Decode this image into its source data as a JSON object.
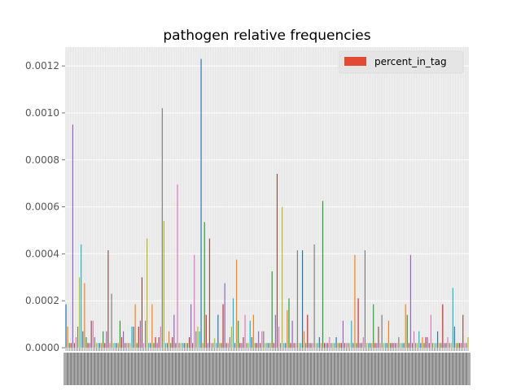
{
  "chart_data": {
    "type": "bar",
    "title": "pathogen relative frequencies",
    "xlabel": "",
    "ylabel": "",
    "ylim": [
      0,
      0.00128
    ],
    "yticks": [
      "0.0000",
      "0.0002",
      "0.0004",
      "0.0006",
      "0.0008",
      "0.0010",
      "0.0012"
    ],
    "ytick_values": [
      0,
      0.0002,
      0.0004,
      0.0006,
      0.0008,
      0.001,
      0.0012
    ],
    "grid": true,
    "legend_position": "top-right",
    "series": [
      {
        "name": "percent_in_tag",
        "color": "#E24A33",
        "values": [
          0.000185,
          9e-05,
          2e-05,
          2e-05,
          0.00095,
          2e-05,
          4.5e-05,
          9e-05,
          0.0003,
          0.00044,
          7e-05,
          0.000275,
          4.5e-05,
          2e-05,
          2e-05,
          0.000115,
          0.000115,
          4.5e-05,
          2e-05,
          2e-05,
          2e-05,
          2e-05,
          7e-05,
          2e-05,
          7e-05,
          0.000415,
          2e-05,
          0.00023,
          2e-05,
          2e-05,
          2e-05,
          2e-05,
          0.000115,
          4.5e-05,
          7e-05,
          2e-05,
          2e-05,
          2e-05,
          2e-05,
          9e-05,
          9e-05,
          0.000185,
          2e-05,
          9e-05,
          0.000115,
          0.0003,
          2e-05,
          0.000115,
          0.000465,
          2e-05,
          2e-05,
          0.000185,
          2e-05,
          4.5e-05,
          2e-05,
          4.5e-05,
          9e-05,
          0.00102,
          0.00054,
          2e-05,
          2e-05,
          7e-05,
          2e-05,
          4.5e-05,
          0.00014,
          2e-05,
          0.000695,
          2e-05,
          2e-05,
          2e-05,
          2e-05,
          2e-05,
          2e-05,
          4.5e-05,
          0.000185,
          2e-05,
          0.000395,
          7e-05,
          9e-05,
          7e-05,
          0.00123,
          2e-05,
          0.000535,
          0.00014,
          2e-05,
          0.000465,
          2e-05,
          2e-05,
          4e-05,
          2e-05,
          0.00014,
          2e-05,
          2e-05,
          0.000185,
          0.000275,
          2e-05,
          2e-05,
          4.5e-05,
          9e-05,
          0.00021,
          2e-05,
          0.000375,
          0.000115,
          2e-05,
          2e-05,
          4.5e-05,
          0.00014,
          2e-05,
          2e-05,
          0.000115,
          4.5e-05,
          0.00014,
          2e-05,
          2e-05,
          7e-05,
          2e-05,
          7e-05,
          7e-05,
          2e-05,
          2e-05,
          2e-05,
          2e-05,
          0.000325,
          2e-05,
          0.00014,
          0.00074,
          9e-05,
          2e-05,
          0.0006,
          2e-05,
          2e-05,
          0.00016,
          0.00021,
          2e-05,
          0.000115,
          2e-05,
          2e-05,
          0.000415,
          2e-05,
          2e-05,
          0.000415,
          7e-05,
          2e-05,
          0.00014,
          2e-05,
          2e-05,
          2e-05,
          0.00044,
          2e-05,
          2e-05,
          4.5e-05,
          2e-05,
          0.000625,
          2e-05,
          2e-05,
          2e-05,
          4.5e-05,
          2e-05,
          2e-05,
          2e-05,
          4.5e-05,
          2e-05,
          2e-05,
          2e-05,
          0.000115,
          2e-05,
          2e-05,
          2e-05,
          2e-05,
          0.000115,
          2e-05,
          0.000395,
          2e-05,
          0.00021,
          2e-05,
          2e-05,
          4.5e-05,
          0.000415,
          2e-05,
          2e-05,
          2e-05,
          2e-05,
          0.000185,
          2e-05,
          2e-05,
          9e-05,
          2e-05,
          0.00014,
          2e-05,
          2e-05,
          2e-05,
          0.000115,
          2e-05,
          2e-05,
          2e-05,
          2e-05,
          2e-05,
          4.5e-05,
          2e-05,
          2e-05,
          2e-05,
          0.000185,
          0.00014,
          2e-05,
          0.000395,
          2e-05,
          7e-05,
          2e-05,
          2e-05,
          7e-05,
          2e-05,
          4.5e-05,
          2e-05,
          4.5e-05,
          4.5e-05,
          2e-05,
          0.00014,
          2e-05,
          2e-05,
          2e-05,
          7e-05,
          2e-05,
          2e-05,
          0.000185,
          2e-05,
          2e-05,
          4.5e-05,
          2e-05,
          2e-05,
          0.000255,
          9e-05,
          2e-05,
          2e-05,
          2e-05,
          2e-05,
          0.00014,
          2e-05,
          2e-05,
          4.5e-05
        ]
      }
    ]
  }
}
